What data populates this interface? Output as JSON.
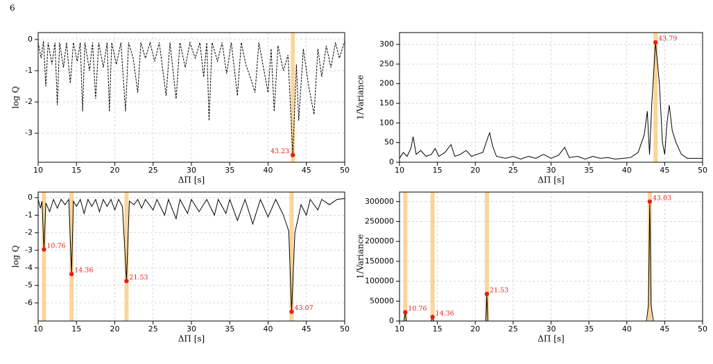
{
  "page_number": "6",
  "chart_data": [
    {
      "type": "line",
      "x_label": "ΔΠ [s]",
      "y_label": "log Q",
      "dashed": true,
      "color": "#000000",
      "xlim": [
        10,
        50
      ],
      "ylim": [
        -3.93,
        0.22
      ],
      "xticks": [
        10,
        15,
        20,
        25,
        30,
        35,
        40,
        45,
        50
      ],
      "yticks": [
        0,
        -1,
        -2,
        -3
      ],
      "grid": true,
      "x": [
        10,
        10.4,
        10.7,
        11.0,
        11.3,
        11.8,
        12.2,
        12.5,
        12.8,
        13.3,
        13.7,
        14.2,
        14.6,
        15.1,
        15.5,
        15.8,
        16.1,
        16.7,
        17.1,
        17.5,
        17.9,
        18.5,
        19.0,
        19.3,
        19.6,
        20.2,
        20.8,
        21.4,
        21.8,
        22.4,
        23.0,
        23.4,
        24.0,
        24.6,
        25.2,
        25.8,
        26.7,
        27.2,
        28.0,
        28.5,
        29.2,
        29.8,
        30.5,
        31.1,
        31.6,
        32.0,
        32.3,
        32.7,
        33.4,
        34.0,
        34.6,
        35.2,
        36.0,
        36.5,
        37.1,
        37.8,
        38.3,
        38.8,
        39.4,
        40.0,
        40.4,
        40.8,
        41.3,
        42.0,
        42.6,
        43.23,
        43.7,
        44.0,
        44.6,
        45.3,
        46.0,
        46.5,
        47.0,
        47.6,
        48.2,
        48.8,
        49.3,
        50
      ],
      "values": [
        -0.1,
        -0.6,
        -0.05,
        -1.5,
        -0.1,
        -0.8,
        -0.1,
        -2.1,
        -0.1,
        -0.9,
        -0.1,
        -1.4,
        -0.1,
        -0.7,
        -0.1,
        -2.3,
        -0.1,
        -1.0,
        -0.1,
        -1.9,
        -0.1,
        -0.9,
        -0.1,
        -2.3,
        -0.1,
        -0.8,
        -0.1,
        -2.3,
        -0.1,
        -0.6,
        -1.7,
        -0.1,
        -0.6,
        -0.1,
        -0.7,
        -0.1,
        -1.8,
        -0.1,
        -1.9,
        -0.1,
        -0.9,
        -0.1,
        -0.6,
        -0.1,
        -1.2,
        -0.1,
        -2.6,
        -0.1,
        -0.7,
        -0.1,
        -1.1,
        -0.1,
        -1.8,
        -0.1,
        -0.8,
        -1.3,
        -1.7,
        -0.1,
        -0.9,
        -1.7,
        -0.3,
        -2.3,
        -0.2,
        -1.0,
        -0.5,
        -3.7,
        -0.8,
        -2.6,
        -0.3,
        -1.5,
        -2.4,
        -0.3,
        -1.2,
        -0.2,
        -0.9,
        -0.1,
        -0.6,
        -0.05
      ],
      "peak_x": [
        43.23
      ],
      "peak_y": [
        -3.7
      ]
    },
    {
      "type": "line",
      "x_label": "ΔΠ [s]",
      "y_label": "1/Variance",
      "dashed": false,
      "color": "#000000",
      "xlim": [
        10,
        50
      ],
      "ylim": [
        0,
        330
      ],
      "xticks": [
        10,
        15,
        20,
        25,
        30,
        35,
        40,
        45,
        50
      ],
      "yticks": [
        0,
        50,
        100,
        150,
        200,
        250,
        300
      ],
      "grid": true,
      "x": [
        10,
        10.5,
        11,
        11.5,
        11.8,
        12.2,
        12.8,
        13.5,
        14.2,
        14.7,
        15.2,
        16,
        16.8,
        17.3,
        18,
        18.8,
        19.5,
        20.2,
        21,
        21.6,
        21.9,
        22.3,
        22.8,
        24,
        25,
        26,
        27,
        28,
        29,
        30,
        31,
        31.8,
        32.4,
        33.5,
        34.5,
        35.5,
        36.5,
        37.5,
        38.5,
        39.5,
        40.5,
        41.5,
        42.3,
        42.7,
        43,
        43.3,
        43.79,
        44.3,
        44.7,
        45,
        45.3,
        45.6,
        46.0,
        46.5,
        47.2,
        48,
        50
      ],
      "values": [
        10,
        25,
        15,
        35,
        65,
        20,
        30,
        15,
        20,
        35,
        15,
        25,
        45,
        15,
        20,
        30,
        15,
        20,
        25,
        60,
        75,
        40,
        15,
        10,
        15,
        8,
        15,
        10,
        20,
        10,
        18,
        38,
        12,
        15,
        8,
        15,
        10,
        12,
        8,
        10,
        12,
        25,
        70,
        130,
        20,
        150,
        305,
        200,
        50,
        20,
        100,
        145,
        80,
        50,
        20,
        10,
        10
      ],
      "peak_x": [
        43.79
      ],
      "peak_y": [
        305
      ]
    },
    {
      "type": "line",
      "x_label": "ΔΠ [s]",
      "y_label": "log Q",
      "dashed": false,
      "color": "#000000",
      "xlim": [
        10,
        50
      ],
      "ylim": [
        -7.03,
        0.32
      ],
      "xticks": [
        10,
        15,
        20,
        25,
        30,
        35,
        40,
        45,
        50
      ],
      "yticks": [
        0,
        -1,
        -2,
        -3,
        -4,
        -5,
        -6
      ],
      "grid": true,
      "x": [
        10,
        10.3,
        10.5,
        10.76,
        11.0,
        11.5,
        12,
        12.5,
        13,
        13.5,
        14,
        14.36,
        14.6,
        15,
        15.5,
        16,
        16.5,
        17,
        17.5,
        18,
        18.5,
        19,
        19.5,
        20,
        20.5,
        21,
        21.53,
        21.9,
        22.5,
        23,
        23.5,
        24,
        25,
        25.5,
        26.5,
        27,
        28,
        28.5,
        29.5,
        30,
        31,
        32,
        33,
        33.5,
        34.5,
        35,
        36,
        37,
        38,
        39,
        40,
        41,
        42,
        42.7,
        43.07,
        43.5,
        44.3,
        45,
        45.5,
        46.5,
        47,
        48,
        49,
        50
      ],
      "values": [
        -0.1,
        -0.6,
        -0.2,
        -2.95,
        -0.3,
        -0.8,
        -0.1,
        -0.6,
        -0.1,
        -0.4,
        -0.1,
        -4.35,
        -0.2,
        -0.5,
        -0.1,
        -0.9,
        -0.1,
        -0.5,
        -0.1,
        -0.8,
        -0.1,
        -0.5,
        -0.1,
        -0.7,
        -0.1,
        -0.5,
        -4.75,
        -0.2,
        -0.4,
        -0.1,
        -0.6,
        -0.1,
        -0.7,
        -0.1,
        -1.0,
        -0.1,
        -1.2,
        -0.1,
        -0.9,
        -0.1,
        -0.8,
        -0.1,
        -1.0,
        -0.1,
        -0.9,
        -0.1,
        -1.3,
        -0.1,
        -1.5,
        -0.1,
        -1.1,
        -0.1,
        -1.0,
        -1.9,
        -6.5,
        -2.0,
        -0.4,
        -1.0,
        -0.1,
        -0.7,
        -0.1,
        -0.4,
        -0.1,
        -0.05
      ],
      "peak_x": [
        10.76,
        14.36,
        21.53,
        43.07
      ],
      "peak_y": [
        -2.95,
        -4.35,
        -4.75,
        -6.5
      ]
    },
    {
      "type": "line",
      "x_label": "ΔΠ [s]",
      "y_label": "1/Variance",
      "dashed": false,
      "color": "#000000",
      "xlim": [
        10,
        50
      ],
      "ylim": [
        0,
        324000
      ],
      "xticks": [
        10,
        15,
        20,
        25,
        30,
        35,
        40,
        45,
        50
      ],
      "yticks": [
        0,
        50000,
        100000,
        150000,
        200000,
        250000,
        300000
      ],
      "grid": true,
      "x": [
        10,
        10.6,
        10.76,
        10.9,
        14.2,
        14.36,
        14.5,
        21.4,
        21.53,
        21.65,
        42.6,
        42.85,
        43.03,
        43.2,
        43.5,
        50
      ],
      "values": [
        0,
        0,
        22000,
        0,
        0,
        10000,
        0,
        0,
        68000,
        0,
        0,
        40000,
        300000,
        40000,
        0,
        0
      ],
      "peak_x": [
        10.76,
        14.36,
        21.53,
        43.03
      ],
      "peak_y": [
        22000,
        10000,
        68000,
        300000
      ]
    }
  ]
}
